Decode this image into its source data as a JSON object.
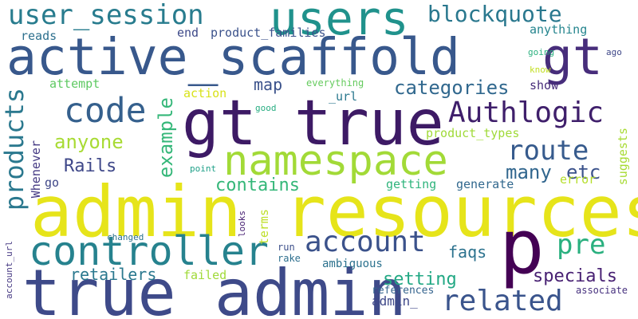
{
  "words": [
    {
      "text": "admin resources",
      "color": "#e6e41a"
    },
    {
      "text": "true admin",
      "color": "#3e4a89"
    },
    {
      "text": "active_scaffold",
      "color": "#38588c"
    },
    {
      "text": "gt true",
      "color": "#3d1a65"
    },
    {
      "text": "gt",
      "color": "#472d7b"
    },
    {
      "text": "p",
      "color": "#440154"
    },
    {
      "text": "users",
      "color": "#20928c"
    },
    {
      "text": "namespace",
      "color": "#a2da37"
    },
    {
      "text": "controller",
      "color": "#26828e"
    },
    {
      "text": "user_session",
      "color": "#287c8e"
    },
    {
      "text": "code",
      "color": "#35608d"
    },
    {
      "text": "Authlogic",
      "color": "#3f1f6b"
    },
    {
      "text": "account",
      "color": "#3b528b"
    },
    {
      "text": "related",
      "color": "#3a548c"
    },
    {
      "text": "products",
      "color": "#2a788e"
    },
    {
      "text": "route",
      "color": "#375b8d"
    },
    {
      "text": "pre",
      "color": "#2ab07f"
    },
    {
      "text": "blockquote",
      "color": "#2a788e"
    },
    {
      "text": "anyone",
      "color": "#a8db34"
    },
    {
      "text": "example",
      "color": "#35b779"
    },
    {
      "text": "categories",
      "color": "#31688e"
    },
    {
      "text": "many",
      "color": "#31668e"
    },
    {
      "text": "etc",
      "color": "#3b528b"
    },
    {
      "text": "Rails",
      "color": "#3f4889"
    },
    {
      "text": "contains",
      "color": "#35b779"
    },
    {
      "text": "specials",
      "color": "#482173"
    },
    {
      "text": "setting",
      "color": "#22a884"
    },
    {
      "text": "retailers",
      "color": "#2a788e"
    },
    {
      "text": "map",
      "color": "#3b528b"
    },
    {
      "text": "faqs",
      "color": "#2c728e"
    },
    {
      "text": "end",
      "color": "#3e4a89"
    },
    {
      "text": "product_families",
      "color": "#3b528b"
    },
    {
      "text": "anything",
      "color": "#25858e"
    },
    {
      "text": "reads",
      "color": "#2d708e"
    },
    {
      "text": "attempt",
      "color": "#5ec962"
    },
    {
      "text": "action",
      "color": "#d8e219"
    },
    {
      "text": "everything",
      "color": "#65cb5e"
    },
    {
      "text": "_url",
      "color": "#2a788e"
    },
    {
      "text": "show",
      "color": "#472c7a"
    },
    {
      "text": "product_types",
      "color": "#a0da39"
    },
    {
      "text": "terms",
      "color": "#bddf26"
    },
    {
      "text": "getting",
      "color": "#2fb47c"
    },
    {
      "text": "generate",
      "color": "#31688e"
    },
    {
      "text": "error",
      "color": "#b5de2b"
    },
    {
      "text": "go",
      "color": "#3f4788"
    },
    {
      "text": "Whenever",
      "color": "#443983"
    },
    {
      "text": "suggests",
      "color": "#a8db34"
    },
    {
      "text": "failed",
      "color": "#a0da39"
    },
    {
      "text": "ambiguous",
      "color": "#2c728e"
    },
    {
      "text": "rake",
      "color": "#2e6f8e"
    },
    {
      "text": "run",
      "color": "#3c4f8a"
    },
    {
      "text": "references",
      "color": "#33638d"
    },
    {
      "text": "admin_",
      "color": "#3f4889"
    },
    {
      "text": "associate",
      "color": "#46307e"
    },
    {
      "text": "going",
      "color": "#2ab07f"
    },
    {
      "text": "know",
      "color": "#c2df23"
    },
    {
      "text": "good",
      "color": "#27ad81"
    },
    {
      "text": "point",
      "color": "#1fa088"
    },
    {
      "text": "looks",
      "color": "#482173"
    },
    {
      "text": "changed",
      "color": "#2c728e"
    },
    {
      "text": "account_url",
      "color": "#453882"
    },
    {
      "text": "ago",
      "color": "#3f4889"
    }
  ]
}
